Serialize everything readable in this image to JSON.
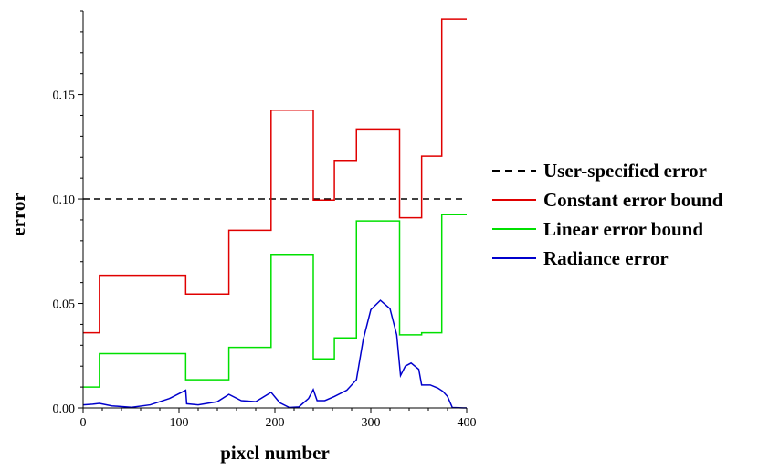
{
  "chart_data": {
    "type": "line",
    "title": "",
    "xlabel": "pixel number",
    "ylabel": "error",
    "xlim": [
      0,
      400
    ],
    "ylim": [
      0,
      0.19
    ],
    "x_ticks": [
      0,
      100,
      200,
      300,
      400
    ],
    "x_tick_labels": [
      "0",
      "100",
      "200",
      "300",
      "400"
    ],
    "y_ticks": [
      0,
      0.05,
      0.1,
      0.15
    ],
    "y_tick_labels": [
      "0.00",
      "0.05",
      "0.10",
      "0.15"
    ],
    "grid": false,
    "legend_position": "right",
    "series": [
      {
        "name": "User-specified error",
        "color": "#000000",
        "style": "dashed",
        "x": [
          0,
          400
        ],
        "y": [
          0.1,
          0.1
        ]
      },
      {
        "name": "Constant error bound",
        "color": "#e00000",
        "style": "solid",
        "x": [
          0,
          17,
          17,
          107,
          107,
          152,
          152,
          196,
          196,
          240,
          240,
          262,
          262,
          285,
          285,
          330,
          330,
          353,
          353,
          374,
          374,
          400
        ],
        "y": [
          0.036,
          0.036,
          0.0635,
          0.0635,
          0.0545,
          0.0545,
          0.085,
          0.085,
          0.1425,
          0.1425,
          0.0995,
          0.0995,
          0.1185,
          0.1185,
          0.1335,
          0.1335,
          0.091,
          0.091,
          0.1205,
          0.1205,
          0.186,
          0.186
        ]
      },
      {
        "name": "Linear error bound",
        "color": "#00e000",
        "style": "solid",
        "x": [
          0,
          17,
          17,
          107,
          107,
          152,
          152,
          196,
          196,
          240,
          240,
          262,
          262,
          285,
          285,
          330,
          330,
          353,
          353,
          374,
          374,
          400
        ],
        "y": [
          0.01,
          0.01,
          0.026,
          0.026,
          0.0135,
          0.0135,
          0.029,
          0.029,
          0.0735,
          0.0735,
          0.0235,
          0.0235,
          0.0335,
          0.0335,
          0.0895,
          0.0895,
          0.035,
          0.035,
          0.036,
          0.036,
          0.0925,
          0.0925
        ]
      },
      {
        "name": "Radiance error",
        "color": "#0000cc",
        "style": "solid",
        "x": [
          0,
          10,
          17,
          30,
          50,
          70,
          90,
          107,
          108,
          120,
          140,
          152,
          165,
          180,
          196,
          205,
          215,
          225,
          235,
          240,
          244,
          252,
          262,
          275,
          285,
          292,
          300,
          310,
          320,
          327,
          331,
          336,
          342,
          350,
          353,
          362,
          370,
          375,
          380,
          385,
          400
        ],
        "y": [
          0.0015,
          0.0018,
          0.0022,
          0.001,
          0.0003,
          0.0015,
          0.0045,
          0.0085,
          0.002,
          0.0015,
          0.003,
          0.0065,
          0.0035,
          0.003,
          0.0075,
          0.0025,
          0.0002,
          0.0005,
          0.0045,
          0.0088,
          0.0035,
          0.0035,
          0.0055,
          0.0085,
          0.0135,
          0.0325,
          0.047,
          0.0515,
          0.0475,
          0.035,
          0.0155,
          0.02,
          0.0215,
          0.0185,
          0.011,
          0.011,
          0.0095,
          0.008,
          0.0055,
          0.0002,
          0.0
        ]
      }
    ]
  }
}
